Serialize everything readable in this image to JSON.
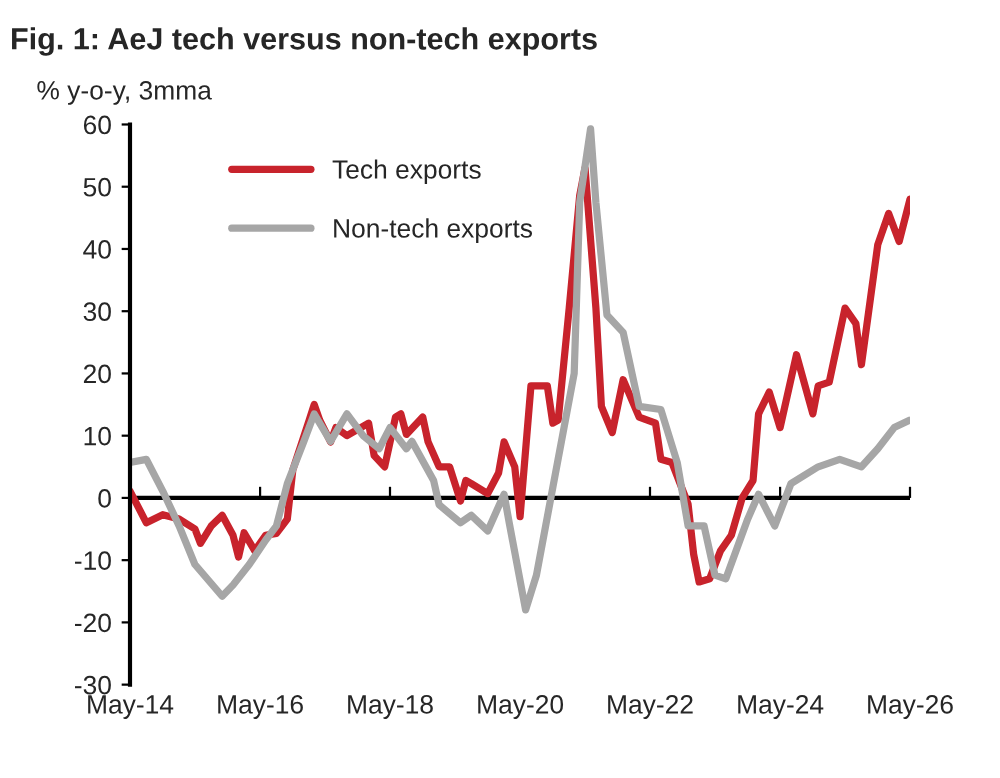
{
  "chart_data": {
    "type": "line",
    "title": "Fig. 1: AeJ tech versus non-tech exports",
    "ylabel": "% y-o-y, 3mma",
    "xlim": [
      "2014-05",
      "2026-05"
    ],
    "xticks": [
      {
        "value": "2014-05",
        "label": "May-14"
      },
      {
        "value": "2016-05",
        "label": "May-16"
      },
      {
        "value": "2018-05",
        "label": "May-18"
      },
      {
        "value": "2020-05",
        "label": "May-20"
      },
      {
        "value": "2022-05",
        "label": "May-22"
      },
      {
        "value": "2024-05",
        "label": "May-24"
      },
      {
        "value": "2026-05",
        "label": "May-26"
      }
    ],
    "ylim": [
      -30,
      60
    ],
    "yticks": [
      -30,
      -20,
      -10,
      0,
      10,
      20,
      30,
      40,
      50,
      60
    ],
    "grid": false,
    "ref_lines": [
      {
        "axis": "y",
        "value": 0,
        "color": "#000000"
      }
    ],
    "legend": "top left",
    "marker": "none",
    "line_style": "solid",
    "series": [
      {
        "name": "Tech exports",
        "color": "#c8232c",
        "x": [
          "2014-05",
          "2014-08",
          "2014-11",
          "2015-02",
          "2015-05",
          "2015-06",
          "2015-08",
          "2015-10",
          "2015-12",
          "2016-01",
          "2016-02",
          "2016-04",
          "2016-06",
          "2016-08",
          "2016-10",
          "2016-11",
          "2017-02",
          "2017-03",
          "2017-04",
          "2017-06",
          "2017-07",
          "2017-09",
          "2018-01",
          "2018-02",
          "2018-04",
          "2018-06",
          "2018-07",
          "2018-08",
          "2018-11",
          "2018-12",
          "2019-02",
          "2019-04",
          "2019-06",
          "2019-07",
          "2019-08",
          "2019-11",
          "2020-01",
          "2020-02",
          "2020-04",
          "2020-05",
          "2020-07",
          "2020-10",
          "2020-11",
          "2020-12",
          "2021-02",
          "2021-04",
          "2021-05",
          "2021-07",
          "2021-08",
          "2021-10",
          "2021-12",
          "2022-03",
          "2022-06",
          "2022-07",
          "2022-09",
          "2022-12",
          "2023-01",
          "2023-02",
          "2023-04",
          "2023-06",
          "2023-08",
          "2023-10",
          "2023-12",
          "2024-01",
          "2024-03",
          "2024-05",
          "2024-08",
          "2024-11",
          "2024-12",
          "2025-02",
          "2025-05",
          "2025-07",
          "2025-08",
          "2025-11",
          "2026-01",
          "2026-03",
          "2026-05"
        ],
        "values": [
          1.1,
          -4,
          -2.7,
          -3.4,
          -5,
          -7.3,
          -4.5,
          -2.8,
          -6,
          -9.5,
          -5.6,
          -8.5,
          -6,
          -5.7,
          -3.4,
          4.5,
          12.5,
          15,
          12.5,
          9,
          11.3,
          10,
          12,
          6.8,
          5,
          13,
          13.5,
          10.2,
          13,
          9,
          5,
          5,
          -0.5,
          2.8,
          2.3,
          0.7,
          4,
          9,
          5,
          -3,
          18,
          18,
          12,
          12.5,
          30.5,
          48.6,
          53,
          30.5,
          14.7,
          10.5,
          19,
          13,
          12,
          6.2,
          5.7,
          -1,
          -9,
          -13.5,
          -13,
          -8.5,
          -6,
          0,
          2.8,
          13.5,
          17,
          11.3,
          23,
          13.5,
          18,
          18.6,
          30.5,
          28,
          21.4,
          40.7,
          45.7,
          41.2,
          48
        ]
      },
      {
        "name": "Non-tech exports",
        "color": "#a6a6a6",
        "x": [
          "2014-05",
          "2014-08",
          "2014-11",
          "2015-02",
          "2015-05",
          "2015-10",
          "2015-12",
          "2016-03",
          "2016-06",
          "2016-08",
          "2016-10",
          "2017-01",
          "2017-03",
          "2017-06",
          "2017-09",
          "2017-12",
          "2018-03",
          "2018-05",
          "2018-08",
          "2018-09",
          "2019-01",
          "2019-02",
          "2019-06",
          "2019-08",
          "2019-11",
          "2020-02",
          "2020-03",
          "2020-06",
          "2020-08",
          "2020-11",
          "2021-03",
          "2021-04",
          "2021-06",
          "2021-07",
          "2021-09",
          "2021-12",
          "2022-03",
          "2022-07",
          "2022-10",
          "2022-12",
          "2023-03",
          "2023-05",
          "2023-07",
          "2023-11",
          "2024-01",
          "2024-04",
          "2024-07",
          "2024-12",
          "2025-04",
          "2025-08",
          "2025-11",
          "2026-02",
          "2026-05"
        ],
        "values": [
          5.7,
          6.2,
          1.1,
          -4.5,
          -10.7,
          -15.8,
          -14,
          -10.7,
          -6.8,
          -4.5,
          2.3,
          9,
          13.5,
          9.1,
          13.5,
          10,
          7.9,
          11.3,
          7.9,
          9.1,
          2.8,
          -1.1,
          -4,
          -2.8,
          -5.3,
          0.6,
          -4,
          -18,
          -12.4,
          1.7,
          20,
          47.5,
          59.3,
          47.5,
          29.4,
          26.6,
          14.7,
          14.2,
          5.7,
          -4.5,
          -4.5,
          -12.4,
          -13,
          -3.4,
          0.6,
          -4.5,
          2.3,
          5,
          6.2,
          5,
          7.9,
          11.3,
          12.5
        ]
      }
    ]
  }
}
